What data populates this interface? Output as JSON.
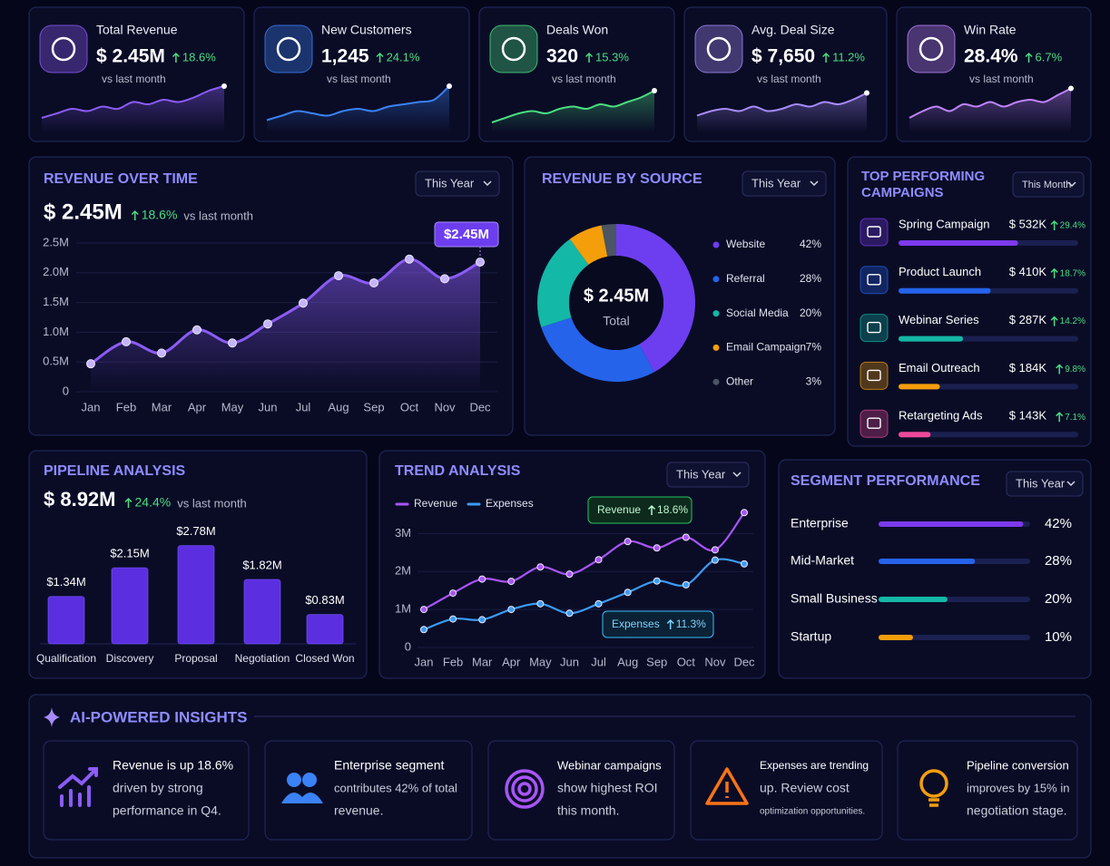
{
  "kpis": [
    {
      "label": "Total Revenue",
      "value": "$ 2.45M",
      "change": "18.6%",
      "note": "vs last month",
      "color": "#8b5cf6",
      "sparkline": [
        2,
        3,
        4,
        3.5,
        4.5,
        4,
        5.5,
        5,
        6,
        5.5,
        6.5,
        8,
        9
      ]
    },
    {
      "label": "New Customers",
      "value": "1,245",
      "change": "24.1%",
      "note": "vs last month",
      "color": "#3b82f6",
      "sparkline": [
        1.5,
        2.5,
        3.5,
        3,
        2.5,
        3.5,
        4,
        3.5,
        4.5,
        5,
        5.5,
        6,
        9
      ]
    },
    {
      "label": "Deals Won",
      "value": "320",
      "change": "15.3%",
      "note": "vs last month",
      "color": "#4ade80",
      "sparkline": [
        1,
        2,
        3,
        3.5,
        3,
        4,
        4.5,
        4,
        5,
        4.5,
        5.5,
        6.5,
        8
      ]
    },
    {
      "label": "Avg. Deal Size",
      "value": "$ 7,650",
      "change": "11.2%",
      "note": "vs last month",
      "color": "#a78bfa",
      "sparkline": [
        2.5,
        3.5,
        4,
        3.5,
        4.5,
        3.5,
        4,
        5,
        4.5,
        5.5,
        5,
        6,
        7.5
      ]
    },
    {
      "label": "Win Rate",
      "value": "28.4%",
      "change": "6.7%",
      "note": "vs last month",
      "color": "#c084fc",
      "sparkline": [
        2,
        3.5,
        4.5,
        3.5,
        5,
        4.5,
        5.5,
        4.5,
        5.5,
        6,
        5.5,
        7,
        8.5
      ]
    }
  ],
  "revenue_over_time": {
    "title": "REVENUE OVER TIME",
    "filter": "This Year",
    "value": "$ 2.45M",
    "change": "18.6%",
    "note": "vs last month",
    "chart": {
      "type": "line",
      "categories": [
        "Jan",
        "Feb",
        "Mar",
        "Apr",
        "May",
        "Jun",
        "Jul",
        "Aug",
        "Sep",
        "Oct",
        "Nov",
        "Dec"
      ],
      "values": [
        0.47,
        0.84,
        0.65,
        1.04,
        0.82,
        1.14,
        1.49,
        1.95,
        1.83,
        2.23,
        1.9,
        2.18
      ],
      "ylim": [
        0,
        2.5
      ],
      "yticks": [
        0,
        {
          "value": 0.5,
          "label": "0.5M"
        },
        {
          "value": 1,
          "label": "1.0M"
        },
        {
          "value": 1.5,
          "label": "1.5M"
        },
        {
          "value": 2,
          "label": "2.0M"
        },
        {
          "value": 2.5,
          "label": "2.5M"
        }
      ],
      "grid": true,
      "color": "#8b5cf6",
      "annotation": "$2.45M"
    }
  },
  "revenue_by_source": {
    "title": "REVENUE BY SOURCE",
    "filter": "This Year",
    "center_value": "$ 2.45M",
    "center_label": "Total",
    "chart": {
      "type": "pie",
      "categories": [
        "Website",
        "Referral",
        "Social Media",
        "Email Campaign",
        "Other"
      ],
      "values": [
        42,
        28,
        20,
        7,
        3
      ],
      "value_labels": [
        "42%",
        "28%",
        "20%",
        "7%",
        "3%"
      ],
      "colors": [
        "#6d3ef0",
        "#2563eb",
        "#14b8a6",
        "#f59e0b",
        "#4b5563"
      ]
    }
  },
  "top_campaigns": {
    "title": [
      "TOP PERFORMING",
      "CAMPAIGNS"
    ],
    "filter": "This Month",
    "chart": {
      "type": "bar",
      "orientation": "horizontal",
      "categories": [
        "Spring Campaign",
        "Product Launch",
        "Webinar Series",
        "Email Outreach",
        "Retargeting Ads"
      ],
      "values": [
        532,
        410,
        287,
        184,
        143
      ],
      "value_labels": [
        "$ 532K",
        "$ 410K",
        "$ 287K",
        "$ 184K",
        "$ 143K"
      ],
      "changes": [
        "29.4%",
        "18.7%",
        "14.2%",
        "9.8%",
        "7.1%"
      ],
      "colors": [
        "#7c3aed",
        "#2563eb",
        "#14b8a6",
        "#f59e0b",
        "#ec4899"
      ],
      "xlim": [
        0,
        800
      ]
    }
  },
  "pipeline": {
    "title": "PIPELINE ANALYSIS",
    "value": "$ 8.92M",
    "change": "24.4%",
    "note": "vs last month",
    "chart": {
      "type": "bar",
      "categories": [
        "Qualification",
        "Discovery",
        "Proposal",
        "Negotiation",
        "Closed Won"
      ],
      "values": [
        1.34,
        2.15,
        2.78,
        1.82,
        0.83
      ],
      "value_labels": [
        "$1.34M",
        "$2.15M",
        "$2.78M",
        "$1.82M",
        "$0.83M"
      ],
      "color": "#6d3ef0"
    }
  },
  "trend": {
    "title": "TREND ANALYSIS",
    "filter": "This Year",
    "chart": {
      "type": "line",
      "categories": [
        "Jan",
        "Feb",
        "Mar",
        "Apr",
        "May",
        "Jun",
        "Jul",
        "Aug",
        "Sep",
        "Oct",
        "Nov",
        "Dec"
      ],
      "series": [
        {
          "name": "Revenue",
          "color": "#a855f7",
          "values": [
            1.0,
            1.43,
            1.8,
            1.74,
            2.12,
            1.93,
            2.31,
            2.79,
            2.62,
            2.9,
            2.57,
            3.55
          ]
        },
        {
          "name": "Expenses",
          "color": "#3b9cf6",
          "values": [
            0.47,
            0.75,
            0.73,
            1.0,
            1.15,
            0.9,
            1.15,
            1.45,
            1.75,
            1.65,
            2.3,
            2.2
          ]
        }
      ],
      "ylim": [
        0,
        3.7
      ],
      "yticks": [
        0,
        {
          "value": 1,
          "label": "1M"
        },
        {
          "value": 2,
          "label": "2M"
        },
        {
          "value": 3,
          "label": "3M"
        }
      ],
      "grid": true,
      "annotations": [
        {
          "label": "Revenue",
          "change": "18.6%"
        },
        {
          "label": "Expenses",
          "change": "11.3%"
        }
      ]
    }
  },
  "segments": {
    "title": "SEGMENT PERFORMANCE",
    "filter": "This Year",
    "chart": {
      "type": "bar",
      "orientation": "horizontal",
      "categories": [
        "Enterprise",
        "Mid-Market",
        "Small Business",
        "Startup"
      ],
      "values": [
        42,
        28,
        20,
        10
      ],
      "value_labels": [
        "42%",
        "28%",
        "20%",
        "10%"
      ],
      "colors": [
        "#7c3aed",
        "#2563eb",
        "#14b8a6",
        "#f59e0b"
      ],
      "xlim": [
        0,
        44
      ]
    }
  },
  "insights": {
    "title": "AI-POWERED INSIGHTS",
    "cards": [
      {
        "lines": [
          "Revenue is up 18.6%",
          "driven by strong",
          "performance in Q4."
        ]
      },
      {
        "lines": [
          "Enterprise segment",
          "contributes 42% of total",
          "revenue."
        ]
      },
      {
        "lines": [
          "Webinar campaigns",
          "show highest ROI",
          "this month."
        ]
      },
      {
        "lines": [
          "Expenses are trending",
          "up. Review cost",
          "optimization opportunities."
        ]
      },
      {
        "lines": [
          "Pipeline conversion",
          "improves by 15% in",
          "negotiation stage."
        ]
      }
    ]
  }
}
